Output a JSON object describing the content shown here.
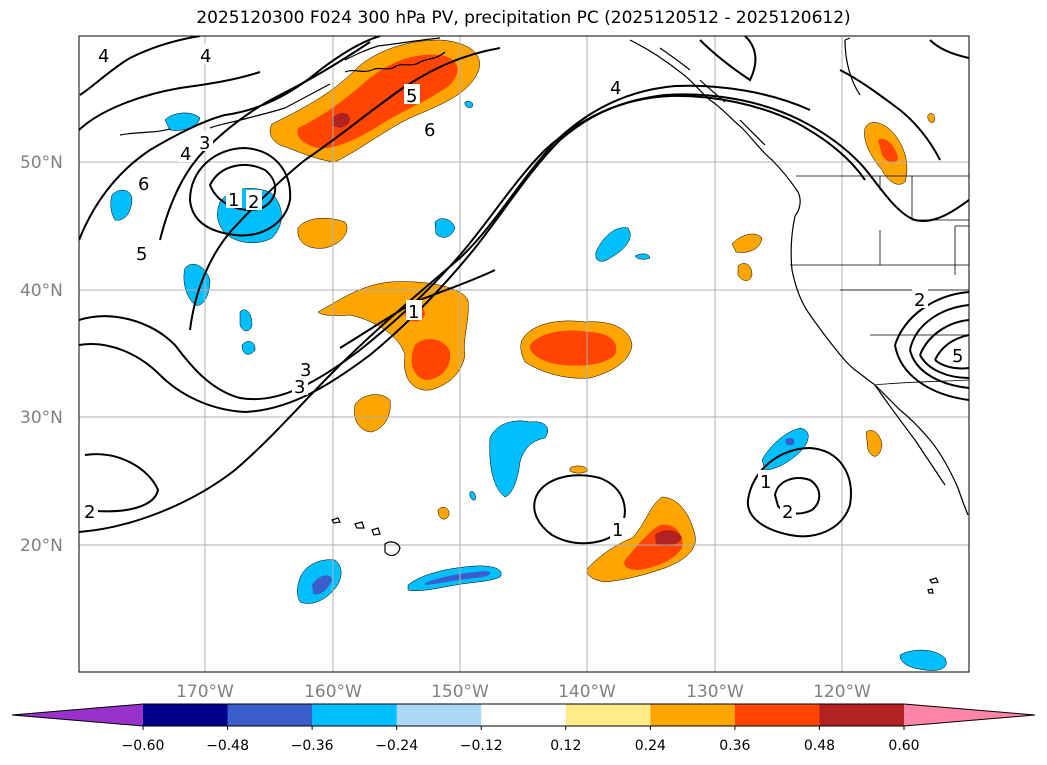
{
  "title": "2025120300 F024 300 hPa PV, precipitation PC (2025120512 - 2025120612)",
  "map": {
    "lat_labels": [
      "50°N",
      "40°N",
      "30°N",
      "20°N"
    ],
    "lon_labels": [
      "170°W",
      "160°W",
      "150°W",
      "140°W",
      "130°W",
      "120°W"
    ],
    "pv_contour_labels": [
      "4",
      "4",
      "5",
      "6",
      "4",
      "3",
      "6",
      "5",
      "1",
      "2",
      "3",
      "1",
      "2",
      "3",
      "4",
      "5",
      "1",
      "1",
      "2",
      "2"
    ]
  },
  "colorbar": {
    "colors": [
      "#9932cc",
      "#00008b",
      "#3a5fcd",
      "#00bfff",
      "#add8f5",
      "#ffffff",
      "#ffeb8a",
      "#ffa500",
      "#ff4500",
      "#b22222",
      "#ff85a8"
    ],
    "tick_labels": [
      "−0.60",
      "−0.48",
      "−0.36",
      "−0.24",
      "−0.12",
      "0.12",
      "0.24",
      "0.36",
      "0.48",
      "0.60"
    ]
  }
}
